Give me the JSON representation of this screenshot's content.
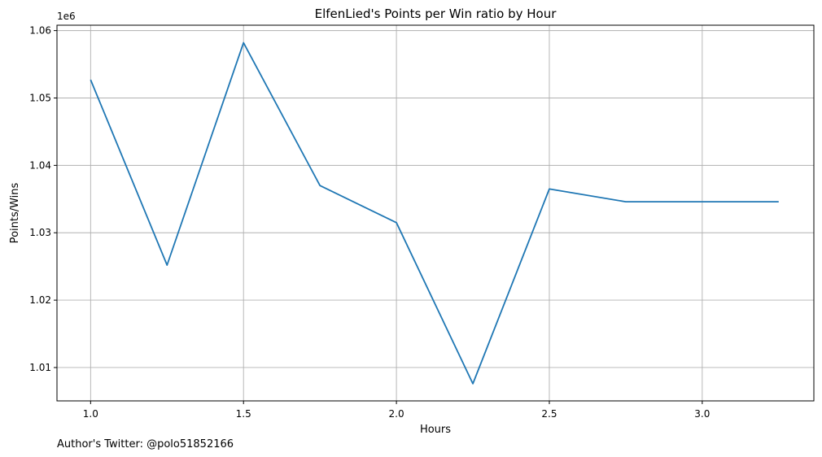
{
  "chart_data": {
    "type": "line",
    "title": "ElfenLied's Points per Win ratio by Hour",
    "xlabel": "Hours",
    "ylabel": "Points/Wins",
    "y_offset_label": "1e6",
    "xlim": [
      0.89,
      3.365
    ],
    "ylim": [
      1.00505,
      1.0608
    ],
    "x_ticks": [
      1.0,
      1.5,
      2.0,
      2.5,
      3.0
    ],
    "x_tick_labels": [
      "1.0",
      "1.5",
      "2.0",
      "2.5",
      "3.0"
    ],
    "y_ticks": [
      1.01,
      1.02,
      1.03,
      1.04,
      1.05,
      1.06
    ],
    "y_tick_labels": [
      "1.01",
      "1.02",
      "1.03",
      "1.04",
      "1.05",
      "1.06"
    ],
    "grid": true,
    "series": [
      {
        "color": "#1f77b4",
        "x": [
          1.0,
          1.25,
          1.5,
          1.75,
          2.0,
          2.25,
          2.5,
          2.75,
          3.0,
          3.25
        ],
        "y": [
          1.0527,
          1.0252,
          1.0582,
          1.037,
          1.0315,
          1.0076,
          1.0365,
          1.0346,
          1.0346,
          1.0346
        ]
      }
    ]
  },
  "footer": {
    "author_text": "Author's Twitter: @polo51852166"
  }
}
